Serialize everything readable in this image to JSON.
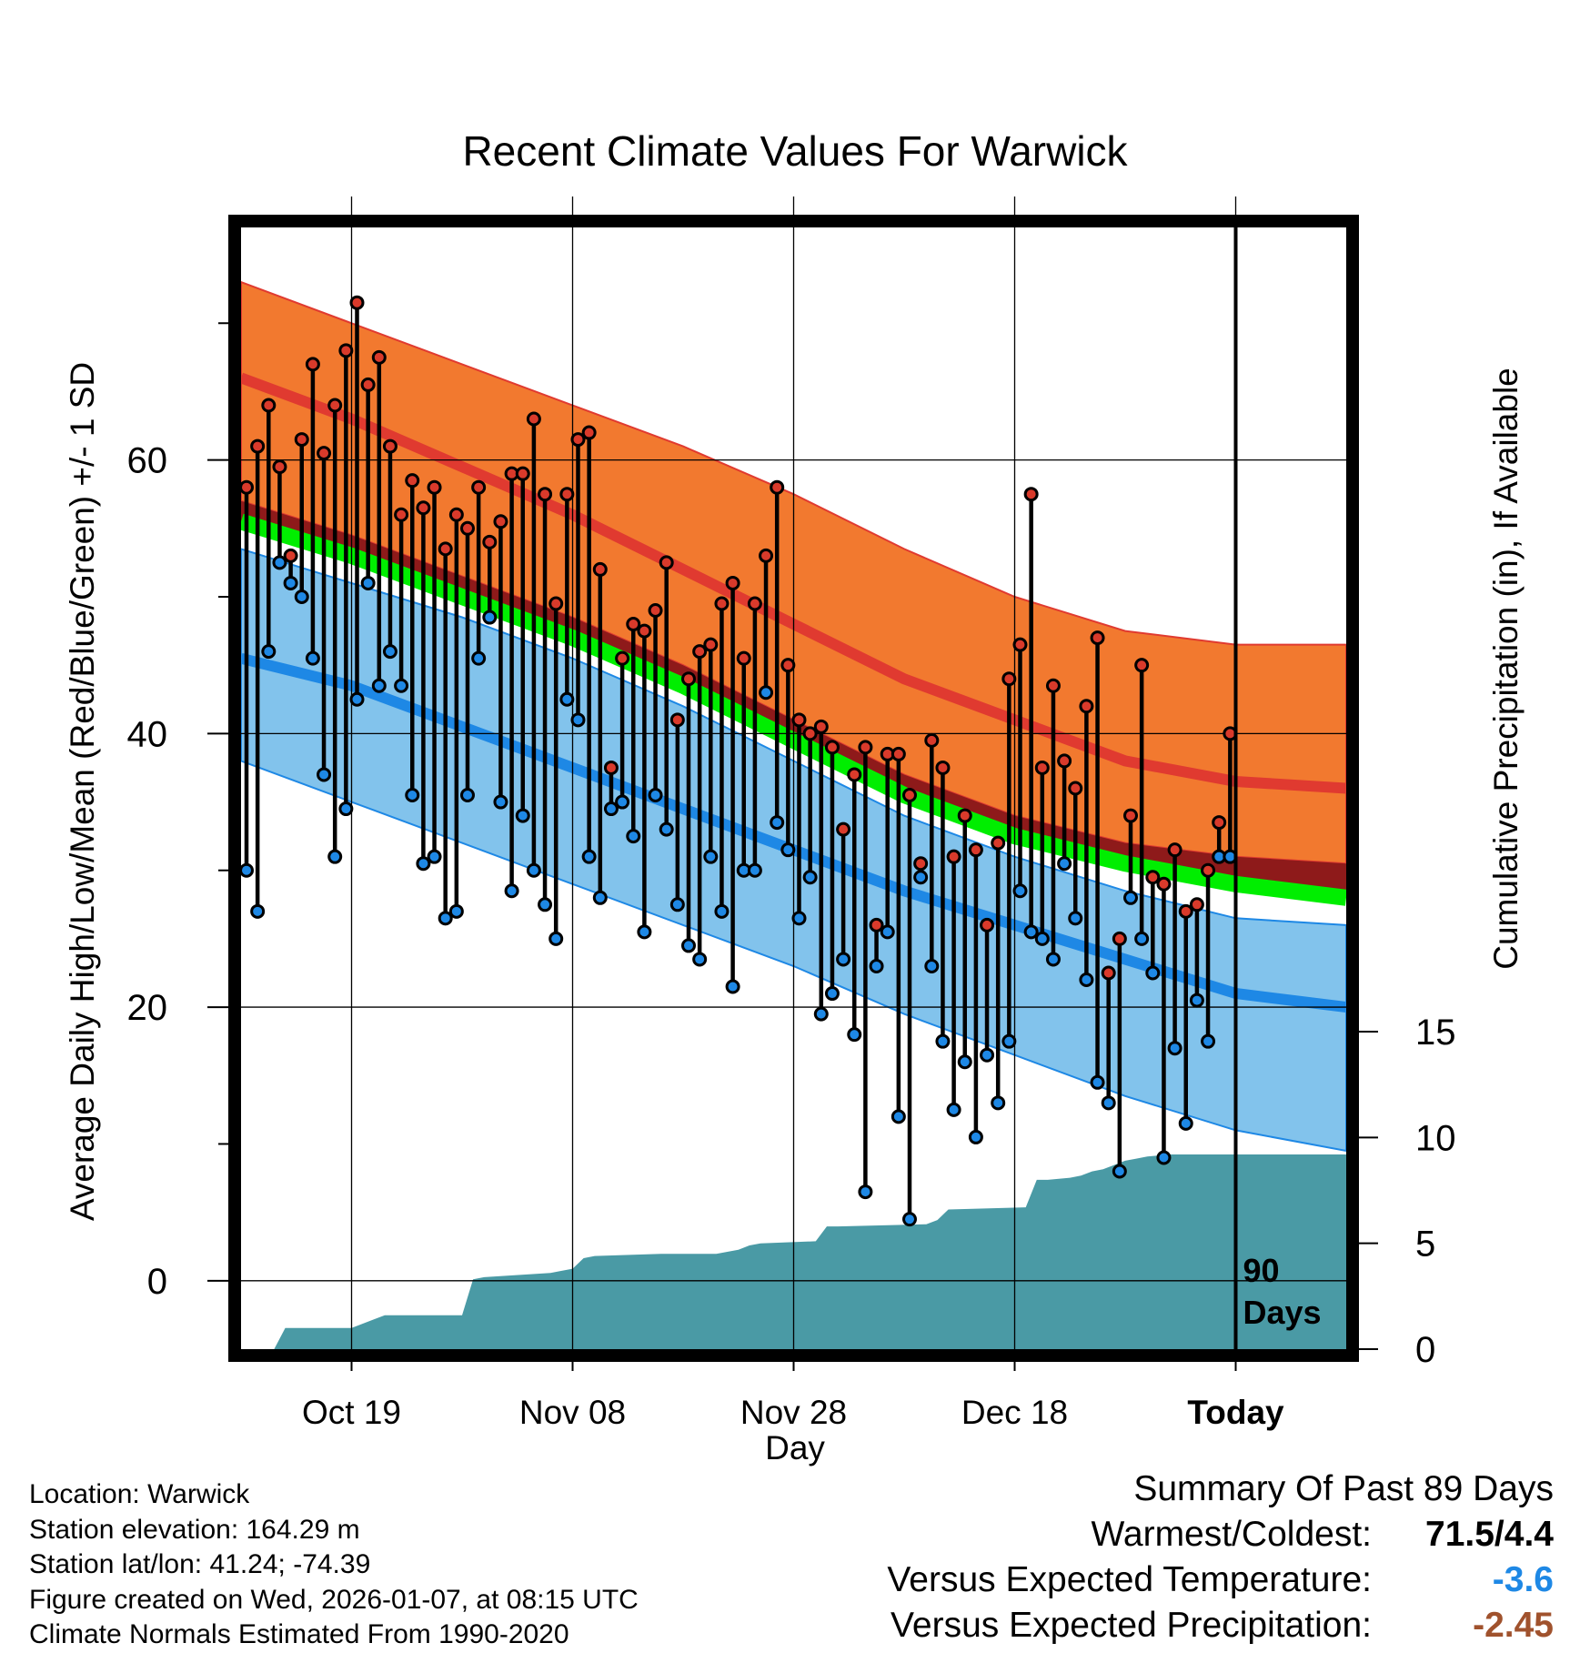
{
  "colors": {
    "normal_high": "#e03a30",
    "normal_high_band": "#f2792f",
    "normal_low": "#1e88e5",
    "normal_low_band": "#82c3ec",
    "normal_mean": "#00ee00",
    "precip_fill": "#4a9aa5",
    "below_mean_band": "#8e1a1a",
    "high_marker": "#d93a2b",
    "low_marker": "#1e88e5",
    "temp_anomaly": "#1e88e5",
    "precip_anomaly": "#a0522d"
  },
  "chart_data": {
    "type": "line",
    "title": "Recent Climate Values For Warwick",
    "xlabel": "Day",
    "ylabel": "Average Daily High/Low/Mean (Red/Blue/Green) +/- 1 SD",
    "y2label": "Cumulative Precipitation (in), If Available",
    "xlim": [
      0,
      100
    ],
    "ylim": [
      -5,
      77
    ],
    "y2lim": [
      0,
      53
    ],
    "x_ticks": [
      {
        "x": 10,
        "label": "Oct 19"
      },
      {
        "x": 30,
        "label": "Nov 08"
      },
      {
        "x": 50,
        "label": "Nov 28"
      },
      {
        "x": 70,
        "label": "Dec 18"
      },
      {
        "x": 90,
        "label": "Today"
      }
    ],
    "y_ticks": [
      0,
      20,
      40,
      60
    ],
    "y_minor_ticks": [
      10,
      30,
      50,
      70
    ],
    "y2_ticks": [
      0,
      5,
      10,
      15
    ],
    "today_x": 90,
    "today_annotation": [
      "90",
      "Days"
    ],
    "normals": {
      "x": [
        0,
        10,
        20,
        30,
        40,
        50,
        60,
        70,
        80,
        90,
        100
      ],
      "high_mean": [
        66,
        63,
        59.5,
        56,
        52,
        48,
        44,
        41,
        38,
        36.5,
        36
      ],
      "high_upper": [
        73,
        70,
        67,
        64,
        61,
        57.5,
        53.5,
        50,
        47.5,
        46.5,
        46.5
      ],
      "high_lower": [
        57,
        54.5,
        51.5,
        48.5,
        45,
        41,
        37,
        34,
        32,
        31,
        30.5
      ],
      "mean": [
        55.5,
        53,
        50,
        47,
        43.5,
        39.5,
        35.5,
        32.5,
        30.5,
        29,
        28
      ],
      "low_mean": [
        45.5,
        43.5,
        40.5,
        37.5,
        34.5,
        31.5,
        28.5,
        26,
        23.5,
        21,
        20
      ],
      "low_upper": [
        53.5,
        51,
        48.5,
        45.5,
        42,
        38,
        34,
        31,
        28.5,
        26.5,
        26
      ],
      "low_lower": [
        38,
        35,
        32,
        29,
        26,
        23,
        19.5,
        16.5,
        13.5,
        11,
        9.5
      ]
    },
    "series": [
      {
        "name": "Daily High",
        "x": [
          0,
          1,
          2,
          3,
          4,
          5,
          6,
          7,
          8,
          9,
          10,
          11,
          12,
          13,
          14,
          15,
          16,
          17,
          18,
          19,
          20,
          21,
          22,
          23,
          24,
          25,
          26,
          27,
          28,
          29,
          30,
          31,
          32,
          33,
          34,
          35,
          36,
          37,
          38,
          39,
          40,
          41,
          42,
          43,
          44,
          45,
          46,
          47,
          48,
          49,
          50,
          51,
          52,
          53,
          54,
          55,
          56,
          57,
          58,
          59,
          60,
          61,
          62,
          63,
          64,
          65,
          66,
          67,
          68,
          69,
          70,
          71,
          72,
          73,
          74,
          75,
          76,
          77,
          78,
          79,
          80,
          81,
          82,
          83,
          84,
          85,
          86,
          87,
          88,
          89
        ],
        "values": [
          58,
          61,
          64,
          59.5,
          53,
          61.5,
          67,
          60.5,
          64,
          68,
          71.5,
          65.5,
          67.5,
          61,
          56,
          58.5,
          56.5,
          58,
          53.5,
          56,
          55,
          58,
          54,
          55.5,
          59,
          59,
          63,
          57.5,
          49.5,
          57.5,
          61.5,
          62,
          52,
          37.5,
          45.5,
          48,
          47.5,
          49,
          52.5,
          41,
          44,
          46,
          46.5,
          49.5,
          51,
          45.5,
          49.5,
          53,
          58,
          45,
          41,
          40,
          40.5,
          39,
          33,
          37,
          39,
          26,
          38.5,
          38.5,
          35.5,
          30.5,
          39.5,
          37.5,
          31,
          34,
          31.5,
          26,
          32,
          44,
          46.5,
          57.5,
          37.5,
          43.5,
          38,
          36,
          42,
          47,
          22.5,
          25,
          34,
          45,
          29.5,
          29,
          31.5,
          27,
          27.5,
          30,
          33.5,
          40
        ]
      },
      {
        "name": "Daily Low",
        "x": [
          0,
          1,
          2,
          3,
          4,
          5,
          6,
          7,
          8,
          9,
          10,
          11,
          12,
          13,
          14,
          15,
          16,
          17,
          18,
          19,
          20,
          21,
          22,
          23,
          24,
          25,
          26,
          27,
          28,
          29,
          30,
          31,
          32,
          33,
          34,
          35,
          36,
          37,
          38,
          39,
          40,
          41,
          42,
          43,
          44,
          45,
          46,
          47,
          48,
          49,
          50,
          51,
          52,
          53,
          54,
          55,
          56,
          57,
          58,
          59,
          60,
          61,
          62,
          63,
          64,
          65,
          66,
          67,
          68,
          69,
          70,
          71,
          72,
          73,
          74,
          75,
          76,
          77,
          78,
          79,
          80,
          81,
          82,
          83,
          84,
          85,
          86,
          87,
          88,
          89
        ],
        "values": [
          30,
          27,
          46,
          52.5,
          51,
          50,
          45.5,
          37,
          31,
          34.5,
          42.5,
          51,
          43.5,
          46,
          43.5,
          35.5,
          30.5,
          31,
          26.5,
          27,
          35.5,
          45.5,
          48.5,
          35,
          28.5,
          34,
          30,
          27.5,
          25,
          42.5,
          41,
          31,
          28,
          34.5,
          35,
          32.5,
          25.5,
          35.5,
          33,
          27.5,
          24.5,
          23.5,
          31,
          27,
          21.5,
          30,
          30,
          43,
          33.5,
          31.5,
          26.5,
          29.5,
          19.5,
          21,
          23.5,
          18,
          6.5,
          23,
          25.5,
          12,
          4.5,
          29.5,
          23,
          17.5,
          12.5,
          16,
          10.5,
          16.5,
          13,
          17.5,
          28.5,
          25.5,
          25,
          23.5,
          30.5,
          26.5,
          22,
          14.5,
          13,
          8,
          28,
          25,
          22.5,
          9,
          17,
          11.5,
          20.5,
          17.5,
          31,
          31
        ]
      }
    ],
    "precipitation": {
      "name": "Cumulative Precipitation (in)",
      "x": [
        0,
        3,
        4,
        10,
        12,
        13,
        20,
        21,
        22,
        28,
        30,
        31,
        32,
        38,
        43,
        44,
        45,
        46,
        47,
        52,
        53,
        54,
        62,
        63,
        64,
        71,
        72,
        73,
        75,
        76,
        77,
        78,
        79,
        80,
        81,
        82,
        84,
        88,
        90,
        100
      ],
      "values": [
        0,
        0,
        1,
        1,
        1.4,
        1.6,
        1.6,
        3.3,
        3.4,
        3.6,
        3.8,
        4.3,
        4.4,
        4.5,
        4.5,
        4.6,
        4.7,
        4.9,
        5.0,
        5.1,
        5.8,
        5.8,
        5.9,
        6.1,
        6.6,
        6.7,
        8.0,
        8.0,
        8.1,
        8.2,
        8.4,
        8.5,
        8.7,
        8.9,
        9.0,
        9.1,
        9.2,
        9.2,
        9.2,
        9.2
      ]
    }
  },
  "footer": {
    "location": "Location: Warwick",
    "elevation": "Station elevation: 164.29 m",
    "latlon": "Station lat/lon: 41.24; -74.39",
    "created": "Figure created on Wed, 2026-01-07, at 08:15 UTC",
    "normals": "Climate Normals Estimated From 1990-2020"
  },
  "summary": {
    "title": "Summary Of Past 89 Days",
    "warmest_coldest_label": "Warmest/Coldest:",
    "warmest_coldest_value": "71.5/4.4",
    "temp_label": "Versus Expected Temperature:",
    "temp_value": "-3.6",
    "precip_label": "Versus Expected Precipitation:",
    "precip_value": "-2.45"
  }
}
